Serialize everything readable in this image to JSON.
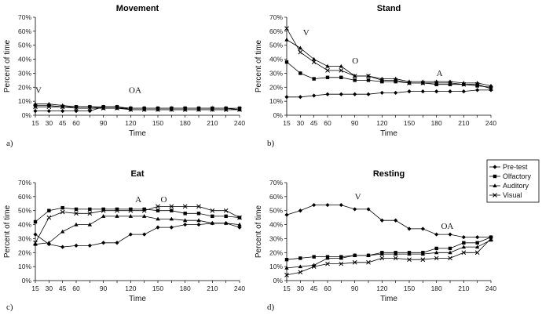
{
  "chart_data": [
    {
      "type": "line",
      "title": "Movement",
      "panel_label": "a)",
      "xlabel": "Time",
      "ylabel": "Percent of time",
      "x": [
        15,
        30,
        45,
        60,
        75,
        90,
        105,
        120,
        135,
        150,
        165,
        180,
        195,
        210,
        225,
        240
      ],
      "x_ticks": [
        "15",
        "30",
        "45",
        "60",
        "",
        "90",
        "",
        "120",
        "",
        "150",
        "",
        "180",
        "",
        "210",
        "",
        "240"
      ],
      "y_ticks": [
        "0%",
        "10%",
        "20%",
        "30%",
        "40%",
        "50%",
        "60%",
        "70%"
      ],
      "ylim": [
        0,
        70
      ],
      "series": [
        {
          "name": "Pre-test",
          "values": [
            3,
            3,
            3,
            3,
            3,
            6,
            6,
            4,
            4,
            4,
            4,
            4,
            4,
            4,
            4,
            4
          ]
        },
        {
          "name": "Olfactory",
          "values": [
            7,
            7,
            6,
            6,
            6,
            6,
            6,
            5,
            5,
            5,
            5,
            5,
            5,
            5,
            5,
            5
          ]
        },
        {
          "name": "Auditory",
          "values": [
            8,
            8,
            7,
            6,
            6,
            5,
            5,
            5,
            5,
            5,
            5,
            5,
            5,
            5,
            5,
            4
          ]
        },
        {
          "name": "Visual",
          "values": [
            6,
            6,
            6,
            5,
            5,
            5,
            5,
            4,
            4,
            4,
            4,
            4,
            4,
            4,
            4,
            4
          ]
        }
      ],
      "annotations": [
        {
          "text": "V",
          "x": 15,
          "y": 16
        },
        {
          "text": "OA",
          "x": 118,
          "y": 16
        }
      ]
    },
    {
      "type": "line",
      "title": "Stand",
      "panel_label": "b)",
      "xlabel": "Time",
      "ylabel": "Percent of time",
      "x": [
        15,
        30,
        45,
        60,
        75,
        90,
        105,
        120,
        135,
        150,
        165,
        180,
        195,
        210,
        225,
        240
      ],
      "x_ticks": [
        "15",
        "30",
        "45",
        "60",
        "",
        "90",
        "",
        "120",
        "",
        "150",
        "",
        "180",
        "",
        "210",
        "",
        "240"
      ],
      "y_ticks": [
        "0%",
        "10%",
        "20%",
        "30%",
        "40%",
        "50%",
        "60%",
        "70%"
      ],
      "ylim": [
        0,
        70
      ],
      "series": [
        {
          "name": "Pre-test",
          "values": [
            13,
            13,
            14,
            15,
            15,
            15,
            15,
            16,
            16,
            17,
            17,
            17,
            17,
            17,
            18,
            18
          ]
        },
        {
          "name": "Olfactory",
          "values": [
            38,
            30,
            26,
            27,
            27,
            25,
            25,
            24,
            24,
            23,
            23,
            22,
            22,
            22,
            21,
            20
          ]
        },
        {
          "name": "Auditory",
          "values": [
            54,
            48,
            40,
            35,
            35,
            28,
            28,
            26,
            26,
            24,
            24,
            24,
            24,
            23,
            23,
            21
          ]
        },
        {
          "name": "Visual",
          "values": [
            62,
            45,
            38,
            32,
            32,
            28,
            28,
            25,
            25,
            23,
            23,
            23,
            23,
            22,
            22,
            19
          ]
        }
      ],
      "annotations": [
        {
          "text": "V",
          "x": 33,
          "y": 57
        },
        {
          "text": "O",
          "x": 87,
          "y": 37
        },
        {
          "text": "A",
          "x": 180,
          "y": 28
        }
      ]
    },
    {
      "type": "line",
      "title": "Eat",
      "panel_label": "c)",
      "xlabel": "Time",
      "ylabel": "Percent of time",
      "x": [
        15,
        30,
        45,
        60,
        75,
        90,
        105,
        120,
        135,
        150,
        165,
        180,
        195,
        210,
        225,
        240
      ],
      "x_ticks": [
        "15",
        "30",
        "45",
        "60",
        "",
        "90",
        "",
        "120",
        "",
        "150",
        "",
        "180",
        "",
        "210",
        "",
        "240"
      ],
      "y_ticks": [
        "0%",
        "10%",
        "20%",
        "30%",
        "40%",
        "50%",
        "60%",
        "70%"
      ],
      "ylim": [
        0,
        70
      ],
      "series": [
        {
          "name": "Pre-test",
          "values": [
            33,
            26,
            24,
            25,
            25,
            27,
            27,
            33,
            33,
            38,
            38,
            40,
            40,
            41,
            41,
            38
          ]
        },
        {
          "name": "Olfactory",
          "values": [
            42,
            50,
            52,
            51,
            51,
            51,
            51,
            51,
            51,
            50,
            50,
            48,
            48,
            46,
            46,
            45
          ]
        },
        {
          "name": "Auditory",
          "values": [
            26,
            27,
            35,
            40,
            40,
            46,
            46,
            46,
            46,
            44,
            44,
            43,
            43,
            41,
            41,
            40
          ]
        },
        {
          "name": "Visual",
          "values": [
            27,
            45,
            49,
            48,
            48,
            50,
            50,
            50,
            50,
            53,
            53,
            53,
            53,
            50,
            50,
            45
          ]
        }
      ],
      "annotations": [
        {
          "text": "A",
          "x": 125,
          "y": 56
        },
        {
          "text": "O",
          "x": 153,
          "y": 56
        }
      ]
    },
    {
      "type": "line",
      "title": "Resting",
      "panel_label": "d)",
      "xlabel": "Time",
      "ylabel": "Percent of time",
      "x": [
        15,
        30,
        45,
        60,
        75,
        90,
        105,
        120,
        135,
        150,
        165,
        180,
        195,
        210,
        225,
        240
      ],
      "x_ticks": [
        "15",
        "30",
        "45",
        "60",
        "",
        "90",
        "",
        "120",
        "",
        "150",
        "",
        "180",
        "",
        "210",
        "",
        "240"
      ],
      "y_ticks": [
        "0%",
        "10%",
        "20%",
        "30%",
        "40%",
        "50%",
        "60%",
        "70%"
      ],
      "ylim": [
        0,
        70
      ],
      "series": [
        {
          "name": "Pre-test",
          "values": [
            47,
            50,
            54,
            54,
            54,
            51,
            51,
            43,
            43,
            37,
            37,
            33,
            33,
            31,
            31,
            31
          ]
        },
        {
          "name": "Olfactory",
          "values": [
            15,
            16,
            17,
            17,
            17,
            18,
            18,
            20,
            20,
            20,
            20,
            23,
            23,
            27,
            27,
            31
          ]
        },
        {
          "name": "Auditory",
          "values": [
            9,
            10,
            11,
            16,
            16,
            18,
            18,
            19,
            19,
            19,
            19,
            20,
            20,
            24,
            24,
            29
          ]
        },
        {
          "name": "Visual",
          "values": [
            4,
            6,
            10,
            12,
            12,
            13,
            13,
            16,
            16,
            15,
            15,
            16,
            16,
            20,
            20,
            30
          ]
        }
      ],
      "annotations": [
        {
          "text": "V",
          "x": 90,
          "y": 58
        },
        {
          "text": "OA",
          "x": 185,
          "y": 37
        }
      ]
    }
  ],
  "legend": {
    "placement": "right-center",
    "entries": [
      {
        "name": "Pre-test",
        "marker": "diamond"
      },
      {
        "name": "Olfactory",
        "marker": "square"
      },
      {
        "name": "Auditory",
        "marker": "triangle"
      },
      {
        "name": "Visual",
        "marker": "cross"
      }
    ]
  },
  "markers": [
    "diamond",
    "square",
    "triangle",
    "cross"
  ]
}
